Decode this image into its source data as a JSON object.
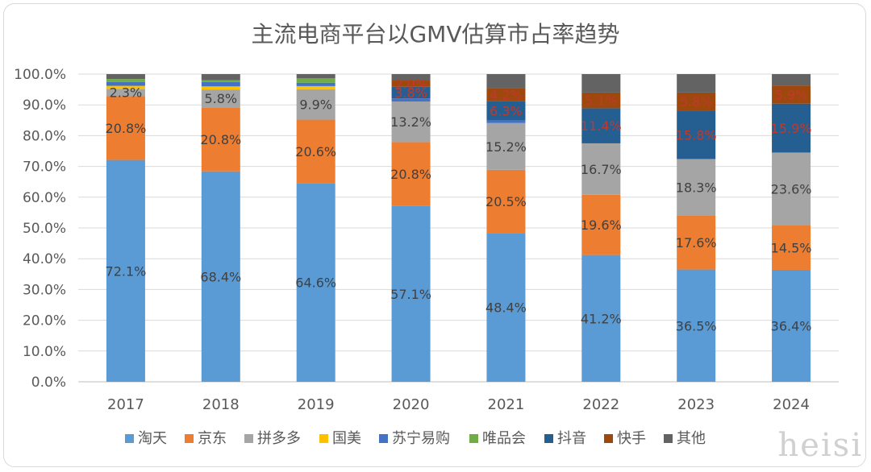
{
  "chart_data": {
    "type": "bar",
    "stacked": true,
    "title": "主流电商平台以GMV估算市占率趋势",
    "categories": [
      "2017",
      "2018",
      "2019",
      "2020",
      "2021",
      "2022",
      "2023",
      "2024"
    ],
    "ylim": [
      0,
      100
    ],
    "y_tick_labels": [
      "0.0%",
      "10.0%",
      "20.0%",
      "30.0%",
      "40.0%",
      "50.0%",
      "60.0%",
      "70.0%",
      "80.0%",
      "90.0%",
      "100.0%"
    ],
    "grid": true,
    "legend_position": "bottom",
    "series": [
      {
        "name": "淘天",
        "color": "#5b9bd5",
        "values": [
          72.1,
          68.4,
          64.6,
          57.1,
          48.4,
          41.2,
          36.5,
          36.4
        ],
        "labels": [
          "72.1%",
          "68.4%",
          "64.6%",
          "57.1%",
          "48.4%",
          "41.2%",
          "36.5%",
          "36.4%"
        ],
        "label_color": "#404040"
      },
      {
        "name": "京东",
        "color": "#ed7d31",
        "values": [
          20.8,
          20.8,
          20.6,
          20.8,
          20.5,
          19.6,
          17.6,
          14.5
        ],
        "labels": [
          "20.8%",
          "20.8%",
          "20.6%",
          "20.8%",
          "20.5%",
          "19.6%",
          "17.6%",
          "14.5%"
        ],
        "label_color": "#404040"
      },
      {
        "name": "拼多多",
        "color": "#a5a5a5",
        "values": [
          2.3,
          5.8,
          9.9,
          13.2,
          15.2,
          16.7,
          18.3,
          23.6
        ],
        "labels": [
          "2.3%",
          "5.8%",
          "9.9%",
          "13.2%",
          "15.2%",
          "16.7%",
          "18.3%",
          "23.6%"
        ],
        "label_color": "#404040"
      },
      {
        "name": "国美",
        "color": "#ffc000",
        "values": [
          1.0,
          1.0,
          1.0,
          0,
          0,
          0,
          0,
          0
        ],
        "labels": [
          "",
          "",
          "",
          "",
          "",
          "",
          "",
          ""
        ],
        "label_color": "#404040"
      },
      {
        "name": "苏宁易购",
        "color": "#4472c4",
        "values": [
          1.2,
          1.4,
          1.1,
          1.0,
          0.8,
          0,
          0,
          0
        ],
        "labels": [
          "",
          "",
          "",
          "",
          "",
          "",
          "",
          ""
        ],
        "label_color": "#404040"
      },
      {
        "name": "唯品会",
        "color": "#70ad47",
        "values": [
          1.0,
          0.6,
          1.4,
          0,
          0,
          0,
          0,
          0
        ],
        "labels": [
          "",
          "",
          "",
          "",
          "",
          "",
          "",
          ""
        ],
        "label_color": "#404040"
      },
      {
        "name": "抖音",
        "color": "#255e91",
        "values": [
          0,
          0,
          0,
          3.8,
          6.3,
          11.4,
          15.8,
          15.9
        ],
        "labels": [
          "",
          "",
          "",
          "3.8%",
          "6.3%",
          "11.4%",
          "15.8%",
          "15.9%"
        ],
        "label_color": "#c0392b"
      },
      {
        "name": "快手",
        "color": "#9e480e",
        "values": [
          0,
          0,
          0,
          2.0,
          4.2,
          5.1,
          5.8,
          5.9
        ],
        "labels": [
          "",
          "",
          "",
          "2.0%",
          "4.2%",
          "5.1%",
          "5.8%",
          "5.9%"
        ],
        "label_color": "#c0392b"
      },
      {
        "name": "其他",
        "color": "#636363",
        "values": [
          1.6,
          2.0,
          1.4,
          2.1,
          4.6,
          6.0,
          6.0,
          3.7
        ],
        "labels": [
          "",
          "",
          "",
          "",
          "",
          "",
          "",
          ""
        ],
        "label_color": "#404040"
      }
    ]
  },
  "watermark": "heisi"
}
